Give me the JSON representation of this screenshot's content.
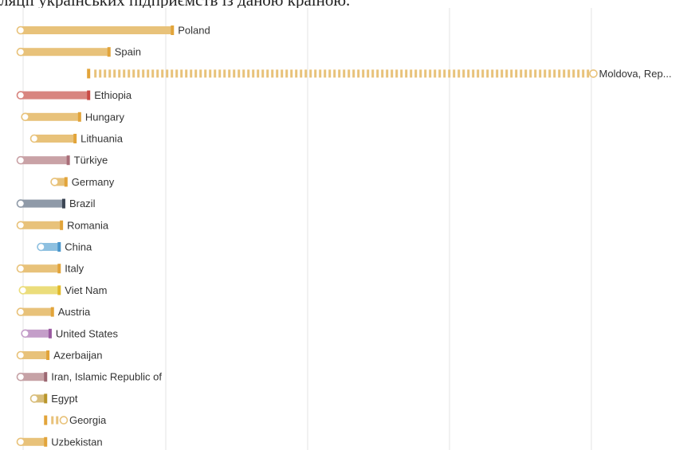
{
  "caption": "ляції українських підприємств із даною країною.",
  "colors": {
    "default": "#e8c27a",
    "default_dark": "#e2a43a",
    "ethiopia": "#d8857f",
    "ethiopia_dark": "#c94b45",
    "turkiye": "#c9a2a6",
    "turkiye_dark": "#a96d78",
    "brazil": "#8f9aa8",
    "brazil_dark": "#3c4654",
    "china": "#8ec0e0",
    "china_dark": "#4a96cc",
    "vietnam": "#ebdd7b",
    "vietnam_dark": "#e2b92a",
    "us": "#c49ec9",
    "us_dark": "#9a5aa0",
    "iran": "#c6a2a6",
    "iran_dark": "#9c6872",
    "egypt": "#d8bd7a",
    "egypt_dark": "#b8952a",
    "grid": "#e3e3e3"
  },
  "chart_data": {
    "type": "dumbbell",
    "rows": [
      {
        "label": "Poland",
        "start": 0.0,
        "end": 6.7,
        "color": "default",
        "style": "solid"
      },
      {
        "label": "Spain",
        "start": 0.0,
        "end": 3.9,
        "color": "default",
        "style": "solid"
      },
      {
        "label": "Moldova, Rep...",
        "start": 25.3,
        "end": 3.0,
        "color": "default",
        "style": "dashed"
      },
      {
        "label": "Ethiopia",
        "start": 0.0,
        "end": 3.0,
        "color": "ethiopia",
        "style": "solid"
      },
      {
        "label": "Hungary",
        "start": 0.2,
        "end": 2.6,
        "color": "default",
        "style": "solid"
      },
      {
        "label": "Lithuania",
        "start": 0.6,
        "end": 2.4,
        "color": "default",
        "style": "solid"
      },
      {
        "label": "Türkiye",
        "start": 0.0,
        "end": 2.1,
        "color": "turkiye",
        "style": "solid"
      },
      {
        "label": "Germany",
        "start": 1.5,
        "end": 2.0,
        "color": "default",
        "style": "solid"
      },
      {
        "label": "Brazil",
        "start": 0.0,
        "end": 1.9,
        "color": "brazil",
        "style": "solid"
      },
      {
        "label": "Romania",
        "start": 0.0,
        "end": 1.8,
        "color": "default",
        "style": "solid"
      },
      {
        "label": "China",
        "start": 0.9,
        "end": 1.7,
        "color": "china",
        "style": "solid"
      },
      {
        "label": "Italy",
        "start": 0.0,
        "end": 1.7,
        "color": "default",
        "style": "solid"
      },
      {
        "label": "Viet Nam",
        "start": 0.1,
        "end": 1.7,
        "color": "vietnam",
        "style": "solid"
      },
      {
        "label": "Austria",
        "start": 0.0,
        "end": 1.4,
        "color": "default",
        "style": "solid"
      },
      {
        "label": "United States",
        "start": 0.2,
        "end": 1.3,
        "color": "us",
        "style": "solid"
      },
      {
        "label": "Azerbaijan",
        "start": 0.0,
        "end": 1.2,
        "color": "default",
        "style": "solid"
      },
      {
        "label": "Iran, Islamic Republic of",
        "start": 0.0,
        "end": 1.1,
        "color": "iran",
        "style": "solid"
      },
      {
        "label": "Egypt",
        "start": 0.6,
        "end": 1.1,
        "color": "egypt",
        "style": "solid"
      },
      {
        "label": "Georgia",
        "start": 1.9,
        "end": 1.1,
        "color": "default",
        "style": "dashed"
      },
      {
        "label": "Uzbekistan",
        "start": 0.0,
        "end": 1.1,
        "color": "default",
        "style": "solid"
      }
    ],
    "xlim": [
      0,
      30
    ],
    "grid": true
  }
}
